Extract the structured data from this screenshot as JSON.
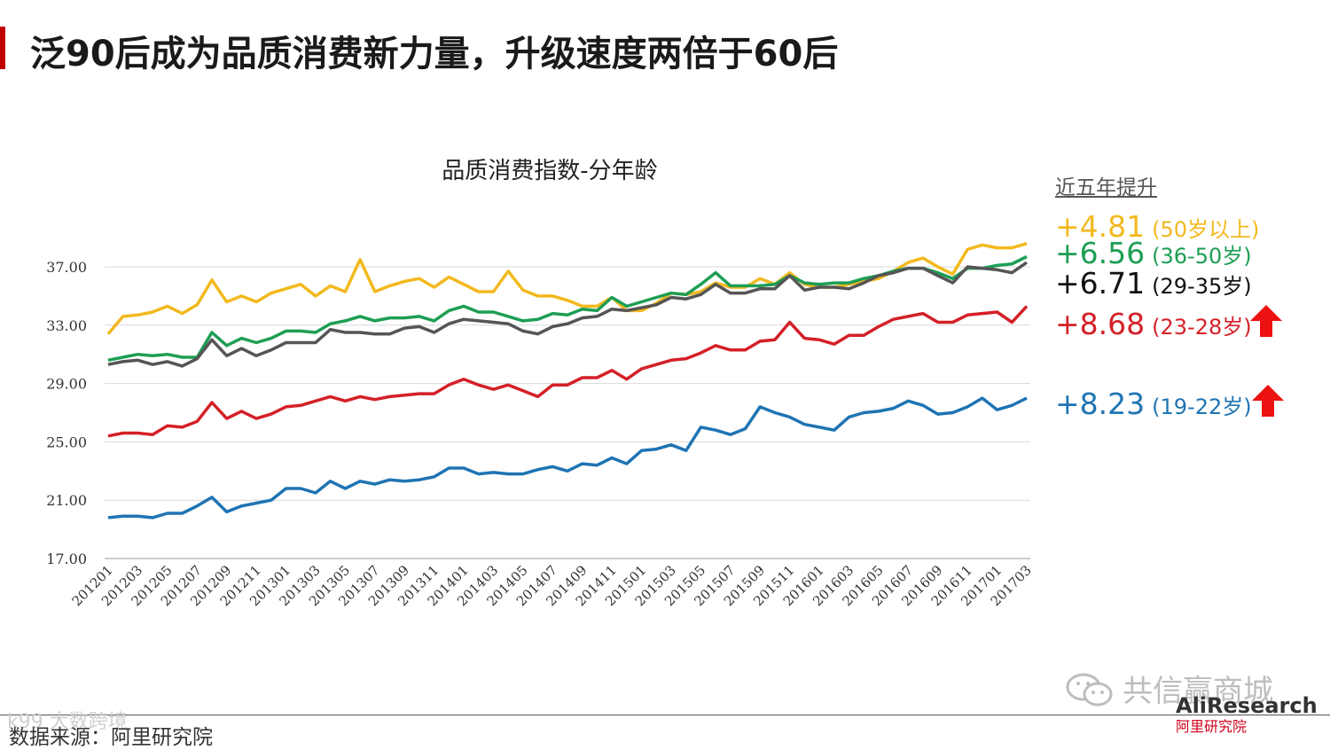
{
  "page": {
    "title": "泛90后成为品质消费新力量，升级速度两倍于60后",
    "source": "数据来源：阿里研究院",
    "watermark_left": "k99 大数跨境",
    "watermark_right": "共信赢商城",
    "logo_text": "AliResearch",
    "logo_sub": "阿里研究院"
  },
  "legend": {
    "heading": "近五年提升",
    "items": [
      {
        "delta": "+4.81",
        "age": "(50岁以上)",
        "color": "#f2b91e",
        "arrow": false
      },
      {
        "delta": "+6.56",
        "age": "(36-50岁)",
        "color": "#1d9e54",
        "arrow": false
      },
      {
        "delta": "+6.71",
        "age": "(29-35岁)",
        "color": "#111111",
        "arrow": false
      },
      {
        "delta": "+8.68",
        "age": "(23-28岁)",
        "color": "#d42027",
        "arrow": true
      },
      {
        "delta": "+8.23",
        "age": "(19-22岁)",
        "color": "#1f74b3",
        "arrow": true
      }
    ]
  },
  "chart_data": {
    "type": "line",
    "title": "品质消费指数-分年龄",
    "xlabel": "",
    "ylabel": "",
    "ylim": [
      17,
      39
    ],
    "yticks": [
      "17.00",
      "21.00",
      "25.00",
      "29.00",
      "33.00",
      "37.00"
    ],
    "grid": true,
    "x": [
      "201201",
      "201202",
      "201203",
      "201204",
      "201205",
      "201206",
      "201207",
      "201208",
      "201209",
      "201210",
      "201211",
      "201212",
      "201301",
      "201302",
      "201303",
      "201304",
      "201305",
      "201306",
      "201307",
      "201308",
      "201309",
      "201310",
      "201311",
      "201312",
      "201401",
      "201402",
      "201403",
      "201404",
      "201405",
      "201406",
      "201407",
      "201408",
      "201409",
      "201410",
      "201411",
      "201412",
      "201501",
      "201502",
      "201503",
      "201504",
      "201505",
      "201506",
      "201507",
      "201508",
      "201509",
      "201510",
      "201511",
      "201512",
      "201601",
      "201602",
      "201603",
      "201604",
      "201605",
      "201606",
      "201607",
      "201608",
      "201609",
      "201610",
      "201611",
      "201612",
      "201701",
      "201702",
      "201703"
    ],
    "xtick_labels": [
      "201201",
      "201203",
      "201205",
      "201207",
      "201209",
      "201211",
      "201301",
      "201303",
      "201305",
      "201307",
      "201309",
      "201311",
      "201401",
      "201403",
      "201405",
      "201407",
      "201409",
      "201411",
      "201501",
      "201503",
      "201505",
      "201507",
      "201509",
      "201511",
      "201601",
      "201603",
      "201605",
      "201607",
      "201609",
      "201611",
      "201701",
      "201703"
    ],
    "series": [
      {
        "color": "#f2b91e",
        "values": [
          32.4,
          33.6,
          33.7,
          33.9,
          34.3,
          33.8,
          34.4,
          36.1,
          34.6,
          35.0,
          34.6,
          35.2,
          35.5,
          35.8,
          35.0,
          35.7,
          35.3,
          37.5,
          35.3,
          35.7,
          36.0,
          36.2,
          35.6,
          36.3,
          35.8,
          35.3,
          35.3,
          36.7,
          35.4,
          35.0,
          35.0,
          34.7,
          34.3,
          34.3,
          34.9,
          34.0,
          34.0,
          34.5,
          35.2,
          35.1,
          35.3,
          35.9,
          35.6,
          35.6,
          36.2,
          35.8,
          36.6,
          35.8,
          35.6,
          35.6,
          35.8,
          36.0,
          36.2,
          36.7,
          37.3,
          37.6,
          37.0,
          36.5,
          38.2,
          38.5,
          38.3,
          38.3,
          38.6
        ]
      },
      {
        "color": "#1d9e54",
        "values": [
          30.6,
          30.8,
          31.0,
          30.9,
          31.0,
          30.8,
          30.8,
          32.5,
          31.6,
          32.1,
          31.8,
          32.1,
          32.6,
          32.6,
          32.5,
          33.1,
          33.3,
          33.6,
          33.3,
          33.5,
          33.5,
          33.6,
          33.3,
          34.0,
          34.3,
          33.9,
          33.9,
          33.6,
          33.3,
          33.4,
          33.8,
          33.7,
          34.1,
          34.0,
          34.9,
          34.3,
          34.6,
          34.9,
          35.2,
          35.1,
          35.8,
          36.6,
          35.7,
          35.7,
          35.7,
          35.8,
          36.4,
          35.9,
          35.8,
          35.9,
          35.9,
          36.2,
          36.4,
          36.7,
          36.9,
          36.9,
          36.6,
          36.2,
          36.9,
          36.9,
          37.1,
          37.2,
          37.7
        ]
      },
      {
        "color": "#555555",
        "values": [
          30.3,
          30.5,
          30.6,
          30.3,
          30.5,
          30.2,
          30.7,
          32.0,
          30.9,
          31.4,
          30.9,
          31.3,
          31.8,
          31.8,
          31.8,
          32.7,
          32.5,
          32.5,
          32.4,
          32.4,
          32.8,
          32.9,
          32.5,
          33.1,
          33.4,
          33.3,
          33.2,
          33.1,
          32.6,
          32.4,
          32.9,
          33.1,
          33.5,
          33.6,
          34.1,
          34.0,
          34.2,
          34.4,
          34.9,
          34.8,
          35.1,
          35.8,
          35.2,
          35.2,
          35.5,
          35.5,
          36.4,
          35.4,
          35.6,
          35.6,
          35.5,
          35.9,
          36.4,
          36.6,
          36.9,
          36.9,
          36.4,
          35.9,
          37.0,
          36.9,
          36.8,
          36.6,
          37.3
        ]
      },
      {
        "color": "#d42027",
        "values": [
          25.4,
          25.6,
          25.6,
          25.5,
          26.1,
          26.0,
          26.4,
          27.7,
          26.6,
          27.1,
          26.6,
          26.9,
          27.4,
          27.5,
          27.8,
          28.1,
          27.8,
          28.1,
          27.9,
          28.1,
          28.2,
          28.3,
          28.3,
          28.9,
          29.3,
          28.9,
          28.6,
          28.9,
          28.5,
          28.1,
          28.9,
          28.9,
          29.4,
          29.4,
          29.9,
          29.3,
          30.0,
          30.3,
          30.6,
          30.7,
          31.1,
          31.6,
          31.3,
          31.3,
          31.9,
          32.0,
          33.2,
          32.1,
          32.0,
          31.7,
          32.3,
          32.3,
          32.9,
          33.4,
          33.6,
          33.8,
          33.2,
          33.2,
          33.7,
          33.8,
          33.9,
          33.2,
          34.3
        ]
      },
      {
        "color": "#1f74b3",
        "values": [
          19.8,
          19.9,
          19.9,
          19.8,
          20.1,
          20.1,
          20.6,
          21.2,
          20.2,
          20.6,
          20.8,
          21.0,
          21.8,
          21.8,
          21.5,
          22.3,
          21.8,
          22.3,
          22.1,
          22.4,
          22.3,
          22.4,
          22.6,
          23.2,
          23.2,
          22.8,
          22.9,
          22.8,
          22.8,
          23.1,
          23.3,
          23.0,
          23.5,
          23.4,
          23.9,
          23.5,
          24.4,
          24.5,
          24.8,
          24.4,
          26.0,
          25.8,
          25.5,
          25.9,
          27.4,
          27.0,
          26.7,
          26.2,
          26.0,
          25.8,
          26.7,
          27.0,
          27.1,
          27.3,
          27.8,
          27.5,
          26.9,
          27.0,
          27.4,
          28.0,
          27.2,
          27.5,
          28.0
        ]
      }
    ]
  }
}
